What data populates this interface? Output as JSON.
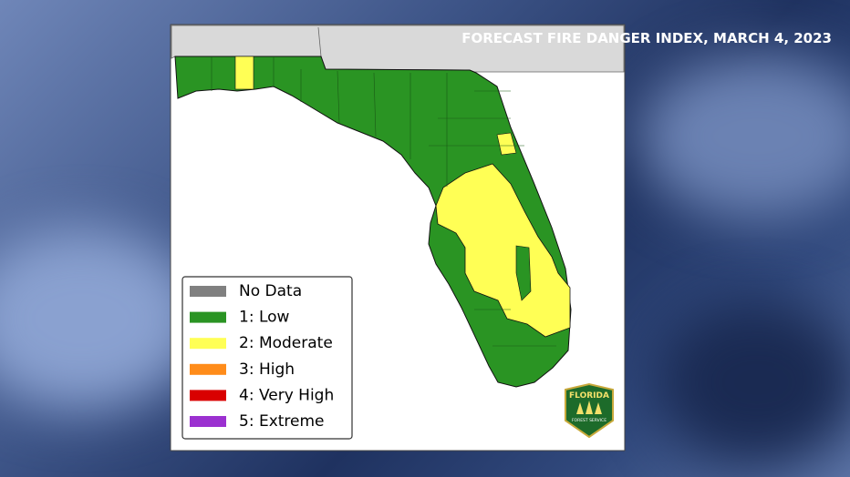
{
  "header": {
    "title": "FORECAST FIRE DANGER INDEX, MARCH 4, 2023"
  },
  "legend": {
    "items": [
      {
        "label": "No Data",
        "color": "#808080"
      },
      {
        "label": "1: Low",
        "color": "#2a9423"
      },
      {
        "label": "2: Moderate",
        "color": "#ffff55"
      },
      {
        "label": "3: High",
        "color": "#ff8c1a"
      },
      {
        "label": "4: Very High",
        "color": "#d90000"
      },
      {
        "label": "5: Extreme",
        "color": "#9b30d0"
      }
    ]
  },
  "logo": {
    "name": "FLORIDA",
    "agency": "FOREST SERVICE"
  }
}
